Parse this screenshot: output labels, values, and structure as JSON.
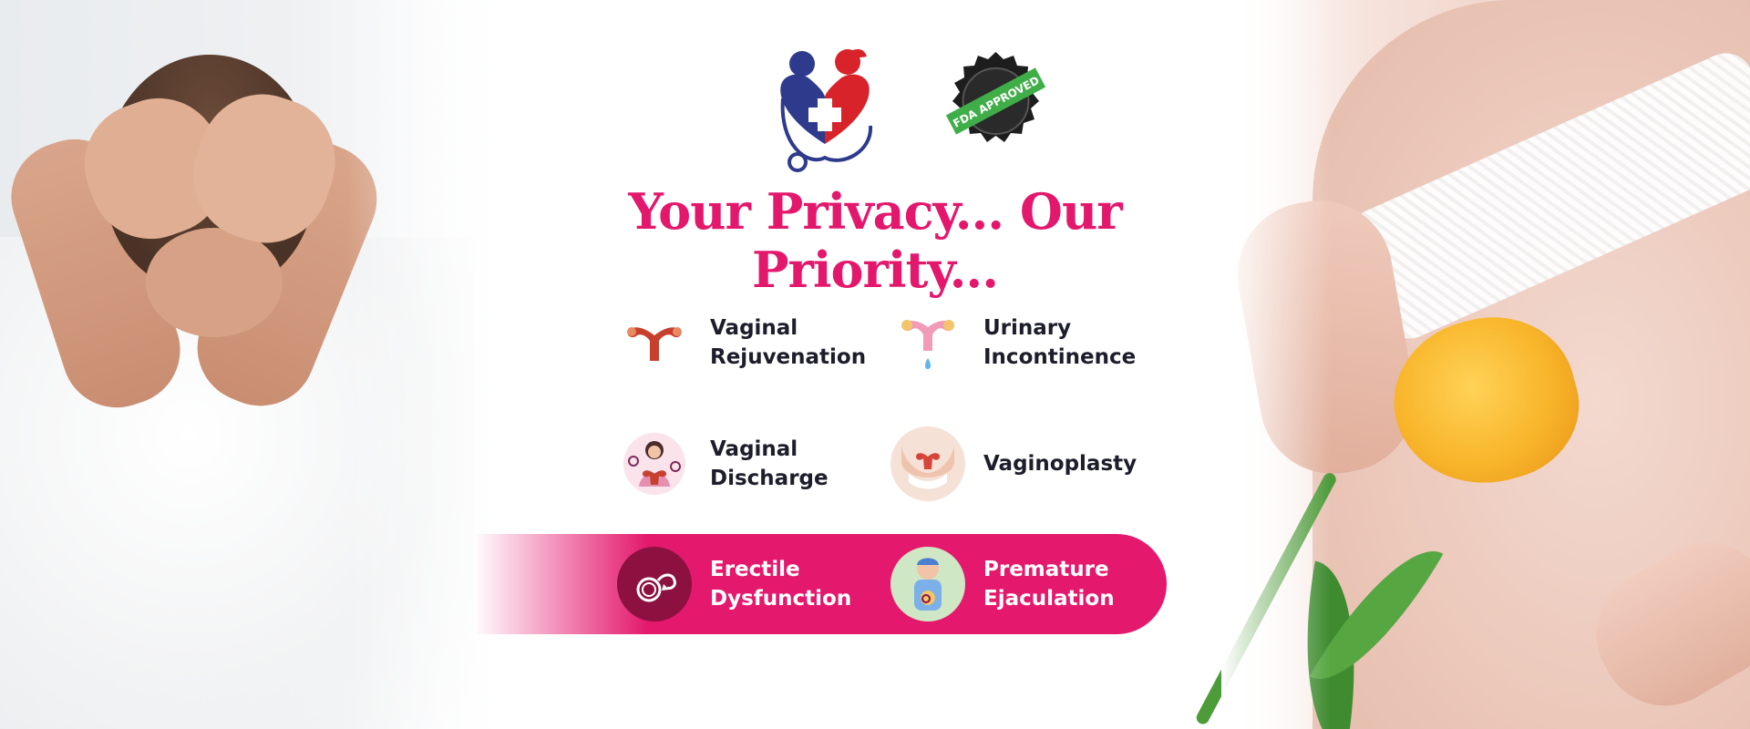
{
  "headline": "Your Privacy... Our Priority...",
  "badge_text": "FDA APPROVED",
  "colors": {
    "brand_pink": "#e3186d",
    "logo_blue": "#2e3a8c",
    "logo_red": "#d8232a",
    "badge_green": "#3fae49",
    "dark_text": "#1d1d2b"
  },
  "services": [
    {
      "label_1": "Vaginal",
      "label_2": "Rejuvenation",
      "icon": "uterus-icon"
    },
    {
      "label_1": "Urinary",
      "label_2": "Incontinence",
      "icon": "uterus-drop-icon"
    },
    {
      "label_1": "Vaginal",
      "label_2": "Discharge",
      "icon": "woman-uterus-icon"
    },
    {
      "label_1": "Vaginoplasty",
      "label_2": "",
      "icon": "pelvis-icon"
    },
    {
      "label_1": "Erectile",
      "label_2": "Dysfunction",
      "icon": "male-symbol-icon"
    },
    {
      "label_1": "Premature",
      "label_2": "Ejaculation",
      "icon": "man-distress-icon"
    }
  ]
}
